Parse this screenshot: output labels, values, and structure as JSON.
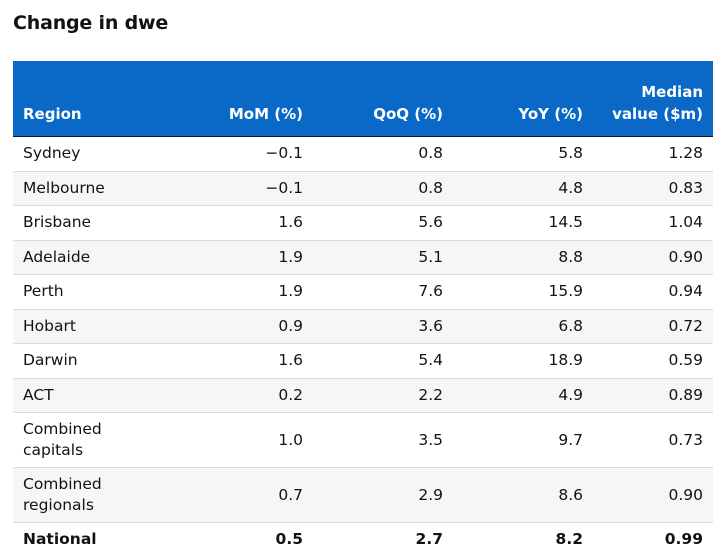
{
  "title": "Change in dwe",
  "table": {
    "headers": {
      "region": "Region",
      "mom": "MoM (%)",
      "qoq": "QoQ (%)",
      "yoy": "YoY (%)",
      "median_line1": "Median",
      "median_line2": "value ($m)"
    },
    "rows": [
      {
        "region": "Sydney",
        "mom": "−0.1",
        "qoq": "0.8",
        "yoy": "5.8",
        "median": "1.28"
      },
      {
        "region": "Melbourne",
        "mom": "−0.1",
        "qoq": "0.8",
        "yoy": "4.8",
        "median": "0.83"
      },
      {
        "region": "Brisbane",
        "mom": "1.6",
        "qoq": "5.6",
        "yoy": "14.5",
        "median": "1.04"
      },
      {
        "region": "Adelaide",
        "mom": "1.9",
        "qoq": "5.1",
        "yoy": "8.8",
        "median": "0.90"
      },
      {
        "region": "Perth",
        "mom": "1.9",
        "qoq": "7.6",
        "yoy": "15.9",
        "median": "0.94"
      },
      {
        "region": "Hobart",
        "mom": "0.9",
        "qoq": "3.6",
        "yoy": "6.8",
        "median": "0.72"
      },
      {
        "region": "Darwin",
        "mom": "1.6",
        "qoq": "5.4",
        "yoy": "18.9",
        "median": "0.59"
      },
      {
        "region": "ACT",
        "mom": "0.2",
        "qoq": "2.2",
        "yoy": "4.9",
        "median": "0.89"
      },
      {
        "region_line1": "Combined",
        "region_line2": "capitals",
        "mom": "1.0",
        "qoq": "3.5",
        "yoy": "9.7",
        "median": "0.73"
      },
      {
        "region_line1": "Combined",
        "region_line2": "regionals",
        "mom": "0.7",
        "qoq": "2.9",
        "yoy": "8.6",
        "median": "0.90"
      },
      {
        "region": "National",
        "mom": "0.5",
        "qoq": "2.7",
        "yoy": "8.2",
        "median": "0.99"
      }
    ]
  },
  "colors": {
    "header_background": "#0a69c7",
    "header_text": "#ffffff",
    "text": "#121212",
    "row_alt": "#f6f6f6"
  }
}
